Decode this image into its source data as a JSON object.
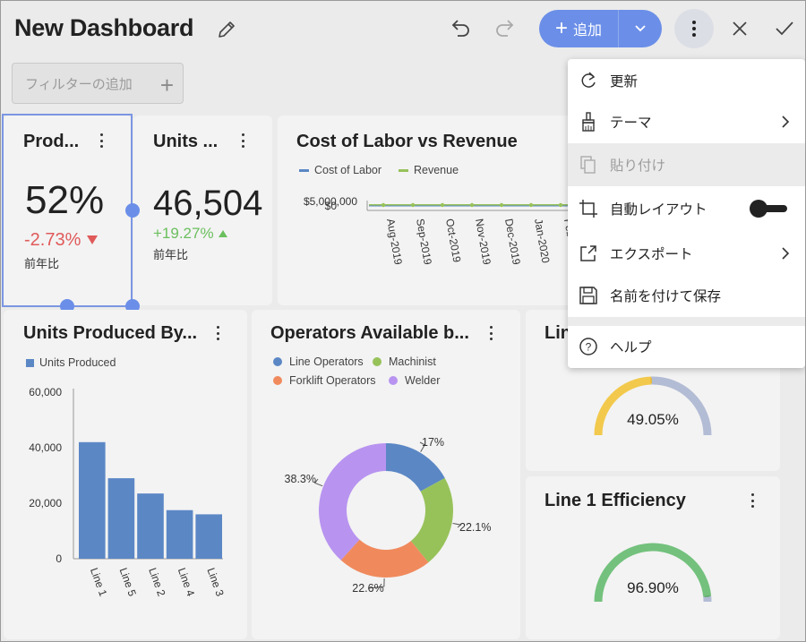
{
  "header": {
    "title": "New Dashboard",
    "add_label": "追加",
    "filter_placeholder": "フィルターの追加"
  },
  "cards": {
    "production": {
      "title": "Prod...",
      "value": "52%",
      "delta": "-2.73%",
      "caption": "前年比"
    },
    "units": {
      "title": "Units ...",
      "value": "46,504",
      "delta": "+19.27%",
      "caption": "前年比"
    },
    "labor": {
      "title": "Cost of Labor vs Revenue",
      "legend": [
        "Cost of Labor",
        "Revenue"
      ],
      "y_top": "$5,000,000",
      "y_zero": "$0"
    },
    "units_by": {
      "title": "Units Produced By...",
      "legend": "Units Produced"
    },
    "operators": {
      "title": "Operators Available b...",
      "legend": [
        "Line Operators",
        "Machinist",
        "Forklift Operators",
        "Welder"
      ]
    },
    "line_partial": {
      "title": "Lin",
      "value": "49.05%"
    },
    "line1": {
      "title": "Line 1 Efficiency",
      "value": "96.90%"
    }
  },
  "menu": {
    "items": [
      {
        "label": "更新"
      },
      {
        "label": "テーマ"
      },
      {
        "label": "貼り付け"
      },
      {
        "label": "自動レイアウト"
      },
      {
        "label": "エクスポート"
      },
      {
        "label": "名前を付けて保存"
      },
      {
        "label": "ヘルプ"
      }
    ]
  },
  "colors": {
    "accent": "#6b8fe8",
    "bar": "#5b87c5",
    "negative": "#e05a5a",
    "positive": "#6bbf5e",
    "gauge_yellow": "#f2c94c",
    "gauge_grey": "#b3bcd5",
    "gauge_green": "#73c17d"
  },
  "chart_data": [
    {
      "type": "bar",
      "title": "Units Produced By...",
      "categories": [
        "Line 1",
        "Line 5",
        "Line 2",
        "Line 4",
        "Line 3"
      ],
      "values": [
        42000,
        29000,
        23500,
        17500,
        16000
      ],
      "ylim": [
        0,
        60000
      ],
      "yticks": [
        "60,000",
        "40,000",
        "20,000",
        "0"
      ],
      "legend": "Units Produced"
    },
    {
      "type": "pie",
      "title": "Operators Available b...",
      "labels": [
        "Line Operators",
        "Machinist",
        "Forklift Operators",
        "Welder"
      ],
      "values": [
        17,
        22.1,
        22.6,
        38.3
      ],
      "value_labels": [
        "17%",
        "22.1%",
        "22.6%",
        "38.3%"
      ],
      "colors": [
        "#5b87c5",
        "#97c25a",
        "#f08a5d",
        "#b894f0"
      ]
    },
    {
      "type": "line",
      "title": "Cost of Labor vs Revenue",
      "series": [
        {
          "name": "Cost of Labor"
        },
        {
          "name": "Revenue"
        }
      ],
      "categories": [
        "Aug-2019",
        "Sep-2019",
        "Oct-2019",
        "Nov-2019",
        "Dec-2019",
        "Jan-2020",
        "Feb-2020"
      ]
    }
  ],
  "gauges": [
    {
      "name": "Lin",
      "percent": 49.05
    },
    {
      "name": "Line 1 Efficiency",
      "percent": 96.9
    }
  ]
}
